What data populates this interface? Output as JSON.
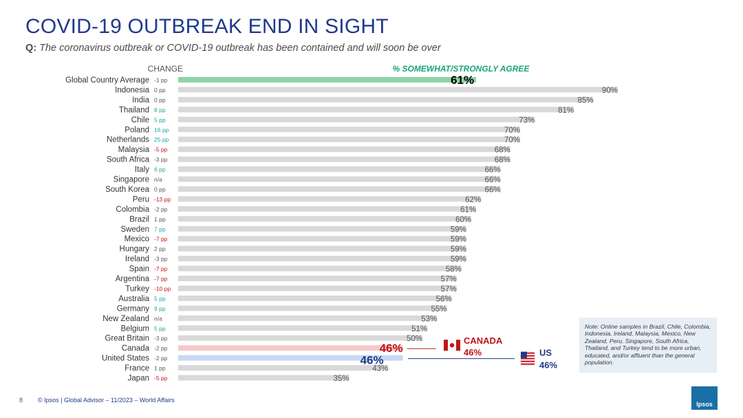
{
  "header": {
    "title": "COVID-19 OUTBREAK END IN SIGHT",
    "question_label": "Q:",
    "question_text": "The coronavirus outbreak or COVID-19 outbreak has been contained and will soon be over"
  },
  "colors": {
    "title": "#1f3a8a",
    "bar_default": "#d9d9d9",
    "bar_global": "#8fd3a8",
    "bar_canada": "#f6c9c9",
    "bar_us": "#c9d9f3",
    "change_positive": "#1aa3a3",
    "change_negative": "#c0141b",
    "change_neutral": "#555555",
    "canada": "#c0141b",
    "us": "#1f3a8a",
    "header_green": "#1aa37a"
  },
  "chart_data": {
    "type": "bar",
    "orientation": "horizontal",
    "title": "% SOMEWHAT/STRONGLY AGREE",
    "change_header": "CHANGE",
    "unit": "%",
    "xlim": [
      0,
      100
    ],
    "categories": [
      "Global Country Average",
      "Indonesia",
      "India",
      "Thailand",
      "Chile",
      "Poland",
      "Netherlands",
      "Malaysia",
      "South Africa",
      "Italy",
      "Singapore",
      "South Korea",
      "Peru",
      "Colombia",
      "Brazil",
      "Sweden",
      "Mexico",
      "Hungary",
      "Ireland",
      "Spain",
      "Argentina",
      "Turkey",
      "Australia",
      "Germany",
      "New Zealand",
      "Belgium",
      "Great Britain",
      "Canada",
      "United States",
      "France",
      "Japan"
    ],
    "values": [
      61,
      90,
      85,
      81,
      73,
      70,
      70,
      68,
      68,
      66,
      66,
      66,
      62,
      61,
      60,
      59,
      59,
      59,
      59,
      58,
      57,
      57,
      56,
      55,
      53,
      51,
      50,
      46,
      46,
      43,
      35
    ],
    "changes": [
      "-1 pp",
      "0 pp",
      "0 pp",
      "8 pp",
      "5 pp",
      "16 pp",
      "25 pp",
      "-5 pp",
      "-3 pp",
      "6 pp",
      "n/a",
      "0 pp",
      "-13 pp",
      "-2 pp",
      "1 pp",
      "7 pp",
      "-7 pp",
      "2 pp",
      "-3 pp",
      "-7 pp",
      "-7 pp",
      "-10 pp",
      "5 pp",
      "9 pp",
      "n/a",
      "5 pp",
      "-3 pp",
      "-2 pp",
      "-2 pp",
      "1 pp",
      "-5 pp"
    ],
    "change_types": [
      "neutral",
      "neutral",
      "neutral",
      "positive",
      "positive",
      "positive",
      "positive",
      "negative",
      "neutral",
      "positive",
      "neutral",
      "neutral",
      "negative",
      "neutral",
      "neutral",
      "positive",
      "negative",
      "neutral",
      "neutral",
      "negative",
      "negative",
      "negative",
      "positive",
      "positive",
      "neutral",
      "positive",
      "neutral",
      "neutral",
      "neutral",
      "neutral",
      "negative"
    ],
    "highlights": {
      "Global Country Average": "global",
      "Canada": "canada",
      "United States": "us"
    },
    "callouts": {
      "canada_label": "CANADA",
      "canada_value": "46%",
      "us_label": "US",
      "us_value": "46%"
    }
  },
  "note": "Note: Online samples in Brazil, Chile, Colombia, Indonesia, Ireland, Malaysia, Mexico, New Zealand, Peru, Singapore, South Africa, Thailand, and Turkey tend to be more urban, educated, and/or affluent than the general population.",
  "footer": "© Ipsos | Global Advisor – 11/2023 – World Affairs",
  "page_number": "8",
  "logo_text": "Ipsos"
}
